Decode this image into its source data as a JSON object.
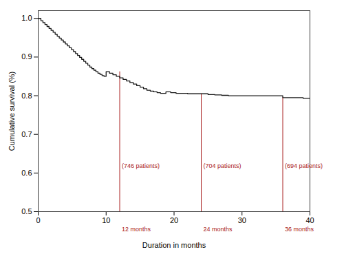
{
  "chart_data": {
    "type": "step",
    "xlabel": "Duration in months",
    "ylabel": "Cumulative survival (%)",
    "xlim": [
      0,
      40
    ],
    "ylim": [
      0.5,
      1.02
    ],
    "xticks": [
      0,
      10,
      20,
      30,
      40
    ],
    "yticks": [
      0.5,
      0.6,
      0.7,
      0.8,
      0.9,
      {
        "value": 1.0,
        "label": "1.0"
      }
    ],
    "grid": false,
    "color": "#1a1a1a",
    "x": [
      0,
      0.4,
      0.7,
      1.0,
      1.3,
      1.6,
      1.9,
      2.2,
      2.5,
      2.8,
      3.1,
      3.4,
      3.7,
      4.0,
      4.3,
      4.6,
      4.9,
      5.2,
      5.5,
      5.8,
      6.1,
      6.4,
      6.7,
      7.0,
      7.3,
      7.6,
      7.9,
      8.2,
      8.5,
      8.8,
      9.1,
      9.4,
      9.7,
      10.0,
      10.5,
      11.0,
      11.5,
      12.0,
      12.5,
      13.0,
      13.5,
      14.0,
      14.5,
      15.0,
      15.5,
      16.0,
      16.5,
      17.0,
      17.5,
      18.0,
      18.8,
      19.5,
      20.3,
      21.0,
      22.0,
      23.0,
      24.0,
      25.0,
      26.0,
      27.0,
      28.0,
      29.0,
      30.0,
      31.0,
      32.0,
      33.0,
      34.0,
      35.0,
      36.0,
      37.5,
      39.0,
      40.0
    ],
    "values": [
      1.0,
      0.994,
      0.989,
      0.984,
      0.979,
      0.974,
      0.969,
      0.964,
      0.959,
      0.954,
      0.949,
      0.944,
      0.939,
      0.934,
      0.929,
      0.924,
      0.919,
      0.914,
      0.909,
      0.904,
      0.899,
      0.894,
      0.889,
      0.884,
      0.879,
      0.874,
      0.87,
      0.866,
      0.862,
      0.858,
      0.855,
      0.852,
      0.85,
      0.862,
      0.858,
      0.854,
      0.85,
      0.846,
      0.842,
      0.838,
      0.834,
      0.83,
      0.826,
      0.822,
      0.818,
      0.814,
      0.812,
      0.81,
      0.808,
      0.806,
      0.81,
      0.808,
      0.806,
      0.806,
      0.805,
      0.805,
      0.805,
      0.803,
      0.802,
      0.801,
      0.8,
      0.8,
      0.8,
      0.8,
      0.8,
      0.8,
      0.8,
      0.8,
      0.795,
      0.795,
      0.793,
      0.793
    ],
    "annotations": [
      {
        "x": 12,
        "y": 0.862,
        "text": "(746 patients)",
        "label": "12 months",
        "color": "#aa2222"
      },
      {
        "x": 24,
        "y": 0.805,
        "text": "(704 patients)",
        "label": "24 months",
        "color": "#aa2222"
      },
      {
        "x": 36,
        "y": 0.795,
        "text": "(694 patients)",
        "label": "36 months",
        "color": "#aa2222"
      }
    ]
  }
}
